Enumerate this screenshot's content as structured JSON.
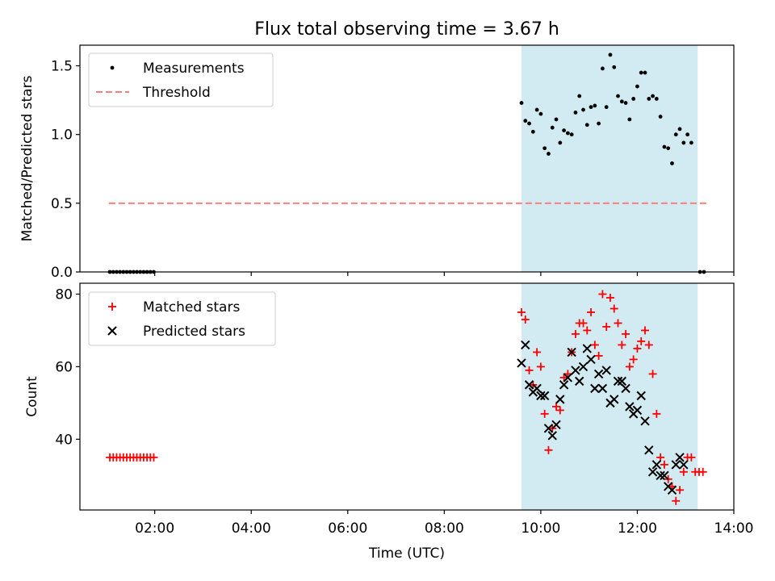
{
  "title": "Flux total observing time = 3.67 h",
  "xlabel": "Time (UTC)",
  "x_ticks": [
    "02:00",
    "04:00",
    "06:00",
    "08:00",
    "10:00",
    "12:00",
    "14:00"
  ],
  "x_tick_hours": [
    2,
    4,
    6,
    8,
    10,
    12,
    14
  ],
  "x_range_hours": [
    0.45,
    14.0
  ],
  "observing_window_hours": [
    9.6,
    13.25
  ],
  "colors": {
    "window": "#add8e6",
    "measurements": "#000000",
    "threshold": "#ff7f7f",
    "matched": "#ff0000",
    "predicted": "#000000"
  },
  "chart_data": [
    {
      "type": "scatter",
      "ylabel": "Matched/Predicted stars",
      "ylim": [
        0,
        1.65
      ],
      "y_ticks": [
        0.0,
        0.5,
        1.0,
        1.5
      ],
      "y_tick_labels": [
        "0.0",
        "0.5",
        "1.0",
        "1.5"
      ],
      "legend_location": "upper left",
      "legend": {
        "measurements": "Measurements",
        "threshold": "Threshold"
      },
      "threshold": {
        "value": 0.5,
        "x_range": [
          1.05,
          13.45
        ]
      },
      "series": [
        {
          "name": "Measurements",
          "points": [
            [
              1.07,
              0
            ],
            [
              1.14,
              0
            ],
            [
              1.21,
              0
            ],
            [
              1.28,
              0
            ],
            [
              1.35,
              0
            ],
            [
              1.42,
              0
            ],
            [
              1.49,
              0
            ],
            [
              1.56,
              0
            ],
            [
              1.63,
              0
            ],
            [
              1.7,
              0
            ],
            [
              1.77,
              0
            ],
            [
              1.84,
              0
            ],
            [
              1.91,
              0
            ],
            [
              1.98,
              0
            ],
            [
              9.6,
              1.23
            ],
            [
              9.68,
              1.1
            ],
            [
              9.76,
              1.08
            ],
            [
              9.84,
              1.02
            ],
            [
              9.92,
              1.18
            ],
            [
              10.0,
              1.15
            ],
            [
              10.08,
              0.9
            ],
            [
              10.16,
              0.86
            ],
            [
              10.24,
              1.05
            ],
            [
              10.32,
              1.11
            ],
            [
              10.4,
              0.94
            ],
            [
              10.48,
              1.03
            ],
            [
              10.56,
              1.01
            ],
            [
              10.64,
              1.0
            ],
            [
              10.72,
              1.16
            ],
            [
              10.8,
              1.28
            ],
            [
              10.88,
              1.18
            ],
            [
              10.96,
              1.07
            ],
            [
              11.04,
              1.2
            ],
            [
              11.12,
              1.21
            ],
            [
              11.2,
              1.08
            ],
            [
              11.28,
              1.48
            ],
            [
              11.36,
              1.2
            ],
            [
              11.44,
              1.58
            ],
            [
              11.52,
              1.49
            ],
            [
              11.6,
              1.28
            ],
            [
              11.68,
              1.24
            ],
            [
              11.76,
              1.23
            ],
            [
              11.84,
              1.11
            ],
            [
              11.92,
              1.26
            ],
            [
              12.0,
              1.35
            ],
            [
              12.08,
              1.45
            ],
            [
              12.16,
              1.45
            ],
            [
              12.24,
              1.26
            ],
            [
              12.32,
              1.28
            ],
            [
              12.4,
              1.26
            ],
            [
              12.48,
              1.13
            ],
            [
              12.56,
              0.91
            ],
            [
              12.64,
              0.9
            ],
            [
              12.72,
              0.79
            ],
            [
              12.8,
              1.0
            ],
            [
              12.88,
              1.04
            ],
            [
              12.96,
              0.94
            ],
            [
              13.04,
              1.0
            ],
            [
              13.12,
              0.94
            ],
            [
              13.3,
              0
            ],
            [
              13.38,
              0
            ]
          ]
        }
      ]
    },
    {
      "type": "scatter",
      "ylabel": "Count",
      "ylim": [
        20.5,
        83
      ],
      "y_ticks": [
        40,
        60,
        80
      ],
      "y_tick_labels": [
        "40",
        "60",
        "80"
      ],
      "legend_location": "upper left",
      "series": [
        {
          "name": "Matched stars",
          "points": [
            [
              1.07,
              35
            ],
            [
              1.14,
              35
            ],
            [
              1.21,
              35
            ],
            [
              1.28,
              35
            ],
            [
              1.35,
              35
            ],
            [
              1.42,
              35
            ],
            [
              1.49,
              35
            ],
            [
              1.56,
              35
            ],
            [
              1.63,
              35
            ],
            [
              1.7,
              35
            ],
            [
              1.77,
              35
            ],
            [
              1.84,
              35
            ],
            [
              1.91,
              35
            ],
            [
              1.98,
              35
            ],
            [
              9.6,
              75
            ],
            [
              9.68,
              73
            ],
            [
              9.76,
              59
            ],
            [
              9.84,
              55
            ],
            [
              9.92,
              64
            ],
            [
              10.0,
              60
            ],
            [
              10.08,
              47
            ],
            [
              10.16,
              37
            ],
            [
              10.24,
              43
            ],
            [
              10.32,
              49
            ],
            [
              10.4,
              48
            ],
            [
              10.48,
              57
            ],
            [
              10.56,
              58
            ],
            [
              10.64,
              64
            ],
            [
              10.72,
              69
            ],
            [
              10.8,
              72
            ],
            [
              10.88,
              72
            ],
            [
              10.96,
              70
            ],
            [
              11.04,
              75
            ],
            [
              11.12,
              66
            ],
            [
              11.2,
              63
            ],
            [
              11.28,
              80
            ],
            [
              11.36,
              71
            ],
            [
              11.44,
              79
            ],
            [
              11.52,
              76
            ],
            [
              11.6,
              72
            ],
            [
              11.68,
              66
            ],
            [
              11.76,
              69
            ],
            [
              11.84,
              60
            ],
            [
              11.92,
              62
            ],
            [
              12.0,
              65
            ],
            [
              12.08,
              67
            ],
            [
              12.16,
              70
            ],
            [
              12.24,
              66
            ],
            [
              12.32,
              58
            ],
            [
              12.4,
              47
            ],
            [
              12.48,
              35
            ],
            [
              12.56,
              33
            ],
            [
              12.64,
              29
            ],
            [
              12.72,
              27
            ],
            [
              12.8,
              23
            ],
            [
              12.88,
              26
            ],
            [
              12.96,
              31
            ],
            [
              13.04,
              35
            ],
            [
              13.12,
              35
            ],
            [
              13.2,
              31
            ],
            [
              13.28,
              31
            ],
            [
              13.36,
              31
            ]
          ]
        },
        {
          "name": "Predicted stars",
          "points": [
            [
              9.6,
              61
            ],
            [
              9.68,
              66
            ],
            [
              9.76,
              55
            ],
            [
              9.84,
              53
            ],
            [
              9.92,
              54
            ],
            [
              10.0,
              52
            ],
            [
              10.08,
              52
            ],
            [
              10.16,
              43
            ],
            [
              10.24,
              41
            ],
            [
              10.32,
              44
            ],
            [
              10.4,
              51
            ],
            [
              10.48,
              55
            ],
            [
              10.56,
              57
            ],
            [
              10.64,
              64
            ],
            [
              10.72,
              59
            ],
            [
              10.8,
              56
            ],
            [
              10.88,
              60
            ],
            [
              10.96,
              65
            ],
            [
              11.04,
              62
            ],
            [
              11.12,
              54
            ],
            [
              11.2,
              58
            ],
            [
              11.28,
              54
            ],
            [
              11.36,
              59
            ],
            [
              11.44,
              50
            ],
            [
              11.52,
              51
            ],
            [
              11.6,
              56
            ],
            [
              11.68,
              56
            ],
            [
              11.76,
              54
            ],
            [
              11.84,
              49
            ],
            [
              11.92,
              47
            ],
            [
              12.0,
              48
            ],
            [
              12.08,
              52
            ],
            [
              12.16,
              45
            ],
            [
              12.24,
              37
            ],
            [
              12.32,
              31
            ],
            [
              12.4,
              33
            ],
            [
              12.48,
              30
            ],
            [
              12.56,
              30
            ],
            [
              12.64,
              27
            ],
            [
              12.72,
              26
            ],
            [
              12.8,
              33
            ],
            [
              12.88,
              35
            ],
            [
              12.96,
              33
            ]
          ]
        }
      ]
    }
  ]
}
